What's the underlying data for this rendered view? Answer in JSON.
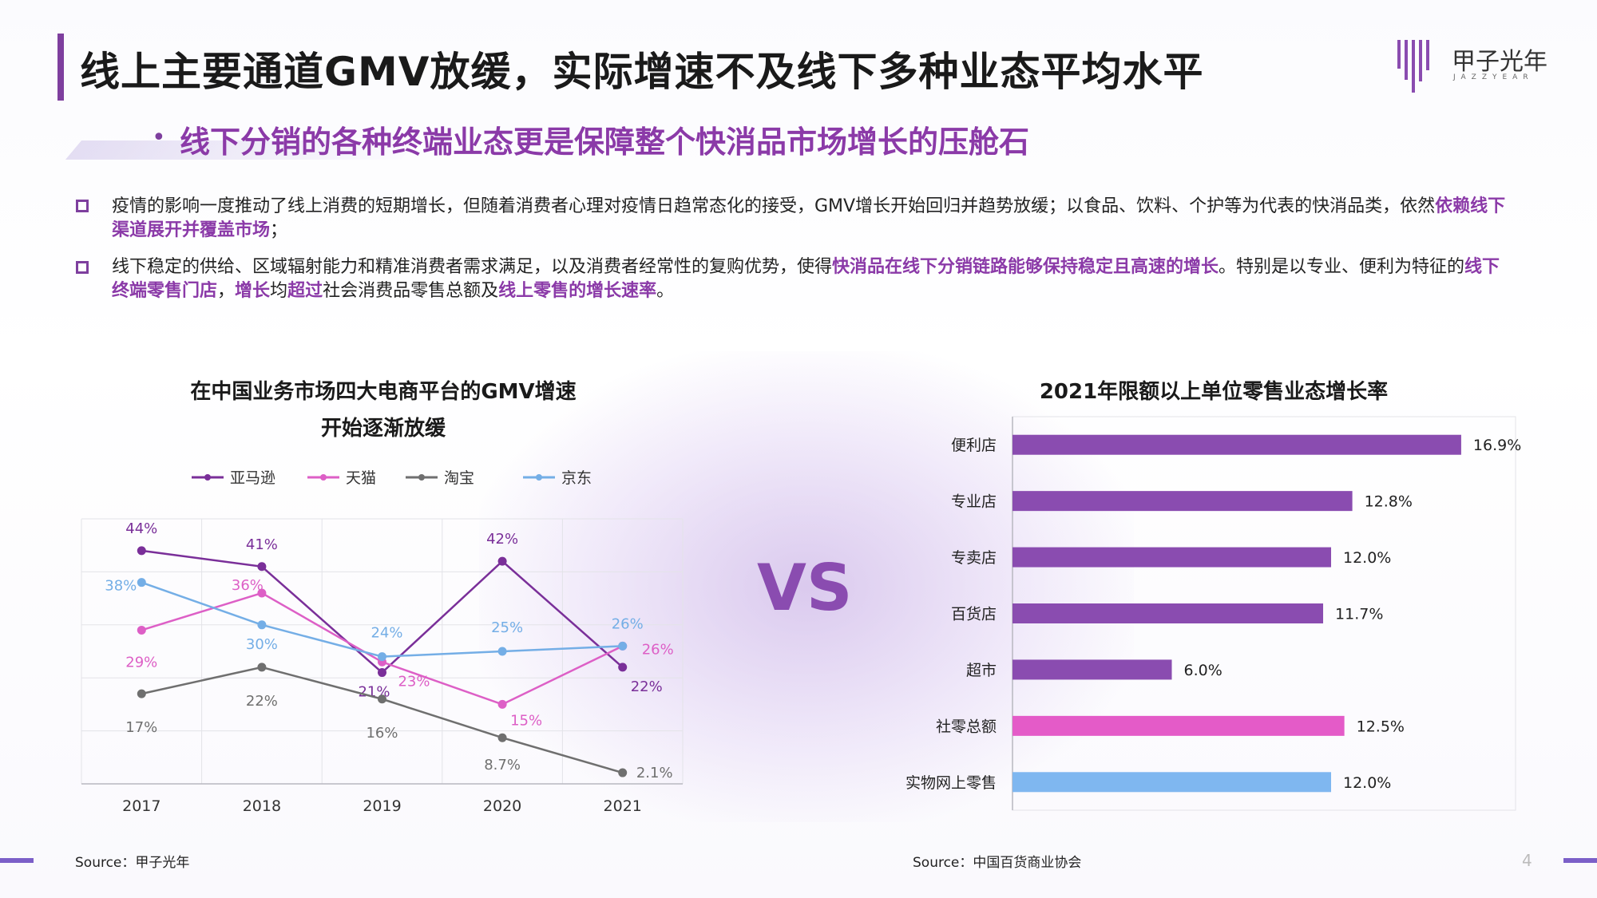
{
  "title": "线上主要通道GMV放缓，实际增速不及线下多种业态平均水平",
  "subtitle": "线下分销的各种终端业态更是保障整个快消品市场增长的压舱石",
  "logo": {
    "name": "甲子光年",
    "sub": "JAZZYEAR"
  },
  "paragraphs": [
    [
      {
        "t": "疫情的影响一度推动了线上消费的短期增长，但随着消费者心理对疫情日趋常态化的接受，GMV增长开始回归并趋势放缓；以食品、饮料、个护等为代表的快消品类，依然"
      },
      {
        "t": "依赖线下渠道展开并覆盖市场",
        "b": true
      },
      {
        "t": "；"
      }
    ],
    [
      {
        "t": "线下稳定的供给、区域辐射能力和精准消费者需求满足，以及消费者经常性的复购优势，使得"
      },
      {
        "t": "快消品在线下分销链路能够保持稳定且高速的增长",
        "b": true
      },
      {
        "t": "。特别是以专业、便利为特征的"
      },
      {
        "t": "线下终端零售门店",
        "b": true
      },
      {
        "t": "，"
      },
      {
        "t": "增长",
        "b": true
      },
      {
        "t": "均"
      },
      {
        "t": "超过",
        "b": true
      },
      {
        "t": "社会消费品零售总额及"
      },
      {
        "t": "线上零售的增长速率",
        "b": true
      },
      {
        "t": "。"
      }
    ]
  ],
  "vs_label": "VS",
  "sources": {
    "left": "Source：甲子光年",
    "right": "Source：中国百货商业协会"
  },
  "page_number": "4",
  "chart_data": [
    {
      "type": "line",
      "title": "在中国业务市场四大电商平台的GMV增速",
      "title_line2": "开始逐渐放缓",
      "x": [
        "2017",
        "2018",
        "2019",
        "2020",
        "2021"
      ],
      "series": [
        {
          "name": "亚马逊",
          "color": "#7a2f99",
          "values": [
            44,
            41,
            21,
            42,
            22
          ],
          "labels": [
            "44%",
            "41%",
            "21%",
            "42%",
            "22%"
          ]
        },
        {
          "name": "天猫",
          "color": "#dd5fc6",
          "values": [
            29,
            36,
            23,
            15,
            26
          ],
          "labels": [
            "29%",
            "36%",
            "23%",
            "15%",
            "26%"
          ]
        },
        {
          "name": "淘宝",
          "color": "#6f6f6f",
          "values": [
            17,
            22,
            16,
            8.7,
            2.1
          ],
          "labels": [
            "17%",
            "22%",
            "16%",
            "8.7%",
            "2.1%"
          ]
        },
        {
          "name": "京东",
          "color": "#74aee6",
          "values": [
            38,
            30,
            24,
            25,
            26
          ],
          "labels": [
            "38%",
            "30%",
            "24%",
            "25%",
            "26%"
          ]
        }
      ],
      "ylim": [
        0,
        50
      ],
      "legend": "top",
      "grid": true
    },
    {
      "type": "bar",
      "orientation": "horizontal",
      "title": "2021年限额以上单位零售业态增长率",
      "categories": [
        "便利店",
        "专业店",
        "专卖店",
        "百货店",
        "超市",
        "社零总额",
        "实物网上零售"
      ],
      "values": [
        16.9,
        12.8,
        12.0,
        11.7,
        6.0,
        12.5,
        12.0
      ],
      "labels": [
        "16.9%",
        "12.8%",
        "12.0%",
        "11.7%",
        "6.0%",
        "12.5%",
        "12.0%"
      ],
      "colors": [
        "#8a4cb0",
        "#8a4cb0",
        "#8a4cb0",
        "#8a4cb0",
        "#8a4cb0",
        "#e45bc8",
        "#7fb7f0"
      ],
      "xlim": [
        0,
        20
      ]
    }
  ]
}
